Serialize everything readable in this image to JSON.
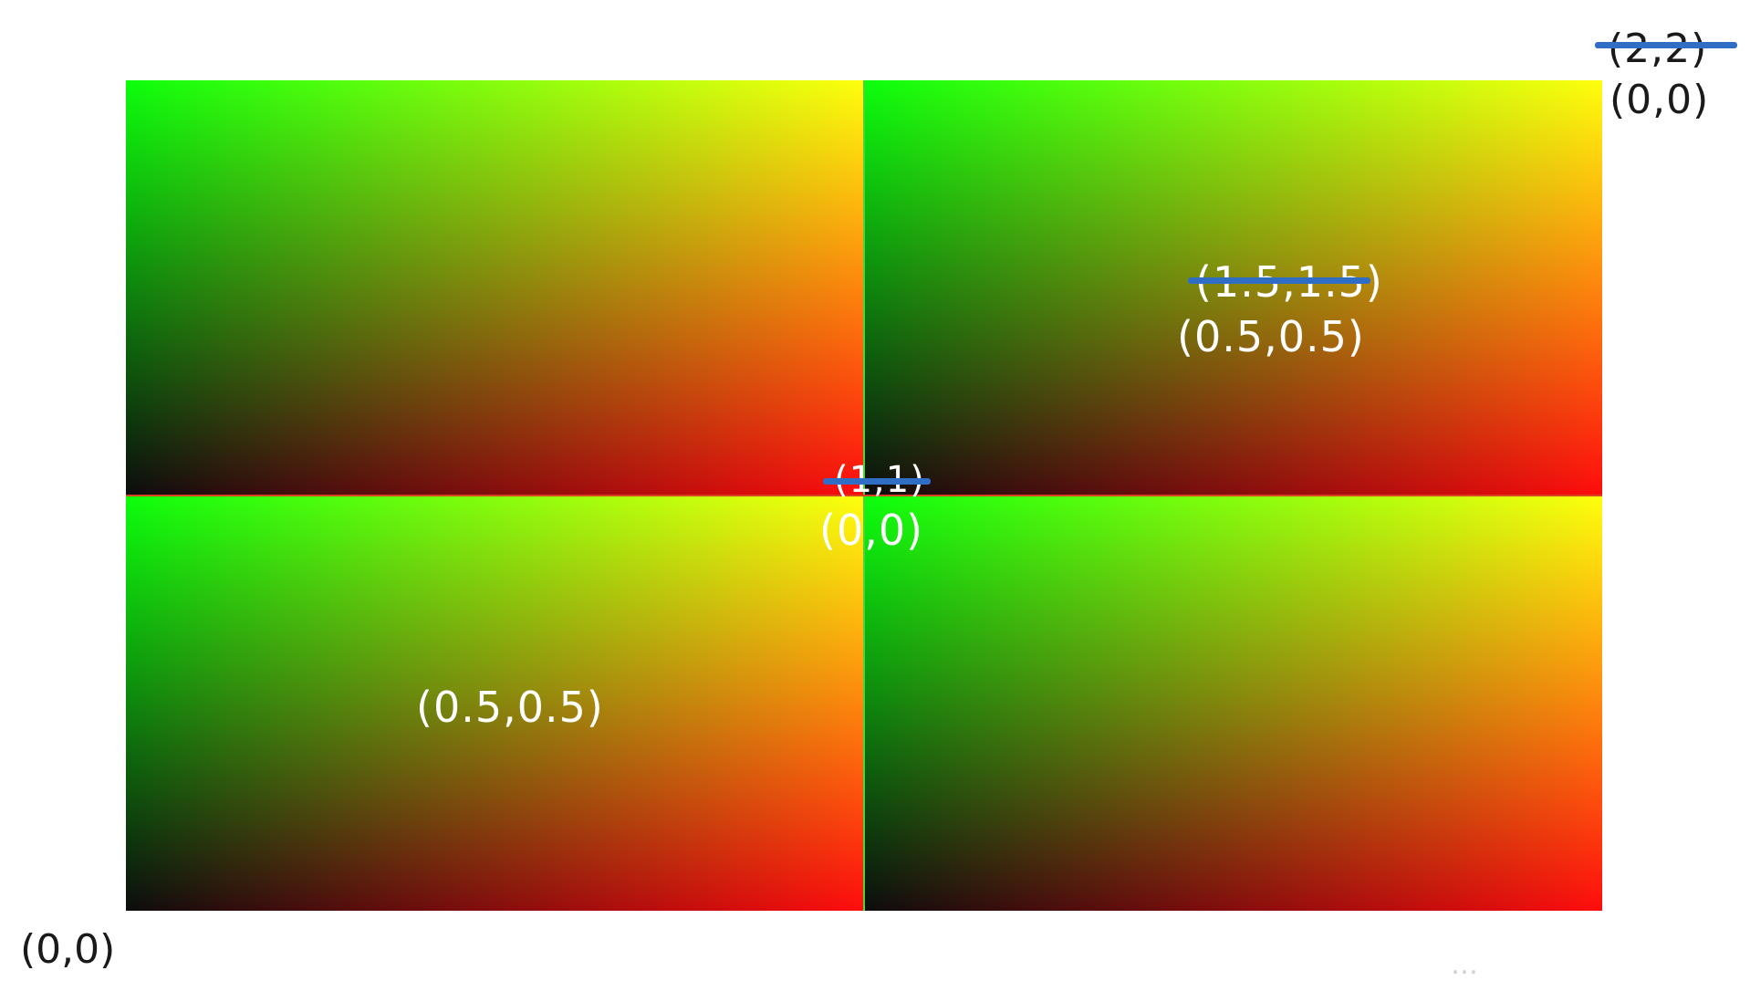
{
  "labels": {
    "top_right_old": "(2,2)",
    "top_right_new": "(0,0)",
    "q_tr_old": "(1.5,1.5)",
    "q_tr_new": "(0.5,0.5)",
    "center_old": "(1,1)",
    "center_new": "(0,0)",
    "q_bl_center": "(0.5,0.5)",
    "bottom_left": "(0,0)"
  },
  "colors": {
    "gradient_red": "#ff0000",
    "gradient_green": "#00ff00",
    "gradient_black": "#000000",
    "strike_blue": "#2f6ec4"
  },
  "watermark": "…"
}
